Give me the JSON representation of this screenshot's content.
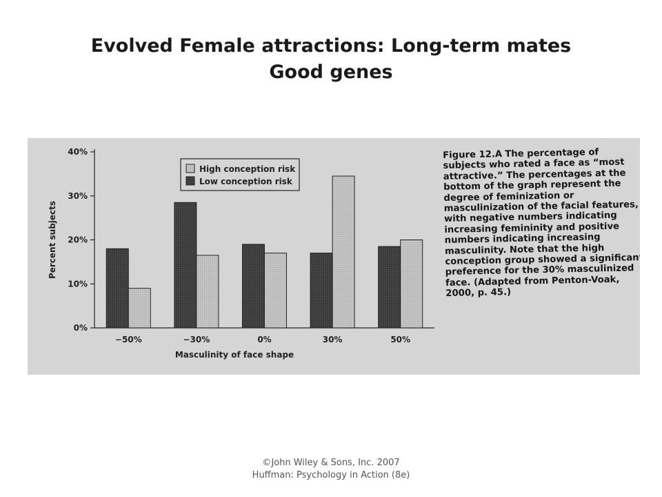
{
  "slide": {
    "title_line1": "Evolved Female attractions: Long-term mates",
    "title_line2": "Good genes"
  },
  "figure": {
    "caption_label": "Figure 12.A",
    "caption_text": "The percentage of subjects who rated a face as “most attractive.” The percentages at the bottom of the graph represent the degree of feminization or masculinization of the facial features, with negative numbers indicating increasing femininity and positive numbers indicating increasing masculinity. Note that the high conception group showed a significant preference for the 30% masculinized face. (Adapted from Penton-Voak, 2000, p. 45.)"
  },
  "chart_data": {
    "type": "bar",
    "xlabel": "Masculinity of face shape",
    "ylabel": "Percent subjects",
    "categories": [
      "−50%",
      "−30%",
      "0%",
      "30%",
      "50%"
    ],
    "yticks": [
      "0%",
      "10%",
      "20%",
      "30%",
      "40%"
    ],
    "ylim": [
      0,
      40
    ],
    "legend_position": "top-left",
    "series": [
      {
        "name": "Low conception risk",
        "color": "#3a3a3a",
        "values": [
          18,
          28.5,
          19,
          17,
          18.5
        ]
      },
      {
        "name": "High conception risk",
        "color": "#c4c4c4",
        "values": [
          9,
          16.5,
          17,
          34.5,
          20
        ]
      }
    ]
  },
  "footer": {
    "line1": "©John Wiley & Sons, Inc. 2007",
    "line2": "Huffman: Psychology in Action (8e)"
  }
}
